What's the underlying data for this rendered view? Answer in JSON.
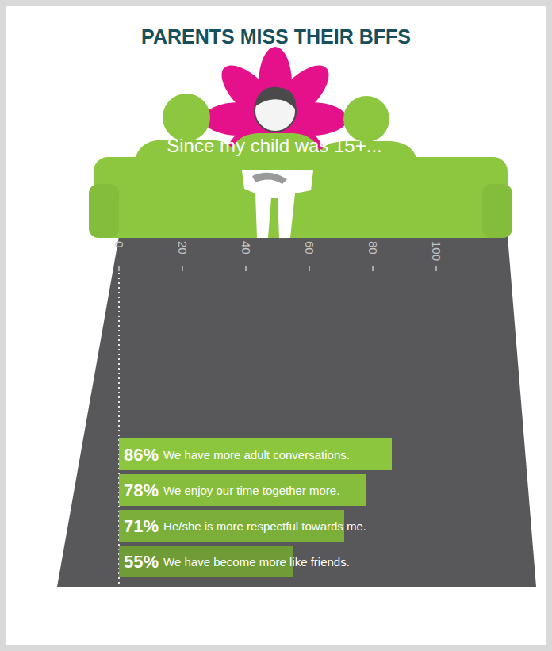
{
  "chart_data": {
    "type": "bar",
    "orientation": "horizontal",
    "title": "PARENTS MISS THEIR BFFS",
    "subtitle": "Since my child was 15+...",
    "categories": [
      "We have more adult conversations.",
      "We enjoy our time together more.",
      "He/she is more respectful towards me.",
      "We have become more like friends."
    ],
    "values": [
      86,
      78,
      71,
      55
    ],
    "value_labels": [
      "86%",
      "78%",
      "71%",
      "55%"
    ],
    "colors": [
      "#8cc63f",
      "#86bd3d",
      "#7caf3a",
      "#6f9c37"
    ],
    "xlim": [
      0,
      100
    ],
    "xticks": [
      0,
      20,
      40,
      60,
      80,
      100
    ],
    "grid": false,
    "data_labels": true
  }
}
